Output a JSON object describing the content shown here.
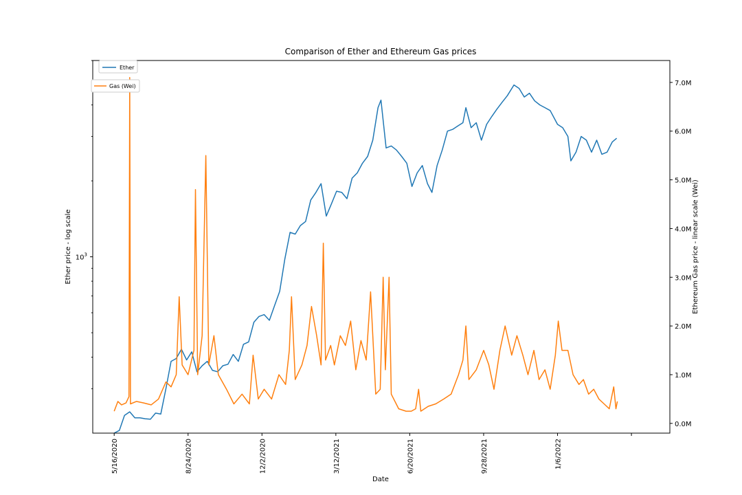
{
  "chart_data": {
    "type": "line",
    "title": "Comparison of Ether and Ethereum Gas prices",
    "xlabel": "Date",
    "ylabel_left": "Ether price - log scale",
    "ylabel_right": "Ethereum Gas price - linear scale (Wei)",
    "left_axis": {
      "scale": "log",
      "ylim": [
        200,
        6000
      ],
      "tick_labels": [
        "10^3"
      ]
    },
    "right_axis": {
      "scale": "linear",
      "ylim": [
        -200000,
        7450000
      ],
      "ticks": [
        0,
        1000000,
        2000000,
        3000000,
        4000000,
        5000000,
        6000000,
        7000000
      ],
      "tick_labels": [
        "0.0M",
        "1.0M",
        "2.0M",
        "3.0M",
        "4.0M",
        "5.0M",
        "6.0M",
        "7.0M"
      ]
    },
    "x_ticks": [
      "5/16/2020",
      "8/24/2020",
      "12/2/2020",
      "3/12/2021",
      "6/20/2021",
      "9/28/2021",
      "1/6/2022"
    ],
    "grid": false,
    "colors": {
      "ether": "#1f77b4",
      "gas": "#ff7f0e"
    },
    "legend": [
      {
        "name": "Ether",
        "color": "#1f77b4",
        "axis": "left",
        "placement": "top-left"
      },
      {
        "name": "Gas (Wei)",
        "color": "#ff7f0e",
        "axis": "right",
        "placement": "upper-left"
      }
    ],
    "series": [
      {
        "name": "Ether",
        "axis": "left",
        "points": [
          [
            "2020-05-16",
            200
          ],
          [
            "2020-05-23",
            205
          ],
          [
            "2020-05-30",
            235
          ],
          [
            "2020-06-06",
            243
          ],
          [
            "2020-06-13",
            230
          ],
          [
            "2020-06-20",
            230
          ],
          [
            "2020-06-27",
            228
          ],
          [
            "2020-07-04",
            227
          ],
          [
            "2020-07-11",
            240
          ],
          [
            "2020-07-18",
            238
          ],
          [
            "2020-07-25",
            300
          ],
          [
            "2020-08-01",
            385
          ],
          [
            "2020-08-08",
            395
          ],
          [
            "2020-08-15",
            430
          ],
          [
            "2020-08-22",
            390
          ],
          [
            "2020-08-29",
            420
          ],
          [
            "2020-09-05",
            350
          ],
          [
            "2020-09-12",
            370
          ],
          [
            "2020-09-19",
            385
          ],
          [
            "2020-09-26",
            355
          ],
          [
            "2020-10-03",
            350
          ],
          [
            "2020-10-10",
            370
          ],
          [
            "2020-10-17",
            375
          ],
          [
            "2020-10-24",
            410
          ],
          [
            "2020-10-31",
            385
          ],
          [
            "2020-11-07",
            450
          ],
          [
            "2020-11-14",
            460
          ],
          [
            "2020-11-21",
            550
          ],
          [
            "2020-11-28",
            580
          ],
          [
            "2020-12-05",
            590
          ],
          [
            "2020-12-12",
            560
          ],
          [
            "2020-12-19",
            640
          ],
          [
            "2020-12-26",
            730
          ],
          [
            "2021-01-02",
            980
          ],
          [
            "2021-01-09",
            1250
          ],
          [
            "2021-01-16",
            1230
          ],
          [
            "2021-01-23",
            1330
          ],
          [
            "2021-01-30",
            1380
          ],
          [
            "2021-02-06",
            1680
          ],
          [
            "2021-02-13",
            1800
          ],
          [
            "2021-02-20",
            1950
          ],
          [
            "2021-02-27",
            1450
          ],
          [
            "2021-03-06",
            1620
          ],
          [
            "2021-03-13",
            1820
          ],
          [
            "2021-03-20",
            1800
          ],
          [
            "2021-03-27",
            1700
          ],
          [
            "2021-04-03",
            2050
          ],
          [
            "2021-04-10",
            2150
          ],
          [
            "2021-04-17",
            2350
          ],
          [
            "2021-04-24",
            2500
          ],
          [
            "2021-05-01",
            2900
          ],
          [
            "2021-05-08",
            3900
          ],
          [
            "2021-05-12",
            4180
          ],
          [
            "2021-05-19",
            2700
          ],
          [
            "2021-05-26",
            2750
          ],
          [
            "2021-06-02",
            2650
          ],
          [
            "2021-06-09",
            2500
          ],
          [
            "2021-06-16",
            2350
          ],
          [
            "2021-06-23",
            1900
          ],
          [
            "2021-06-30",
            2150
          ],
          [
            "2021-07-07",
            2300
          ],
          [
            "2021-07-14",
            1950
          ],
          [
            "2021-07-20",
            1800
          ],
          [
            "2021-07-27",
            2300
          ],
          [
            "2021-08-03",
            2650
          ],
          [
            "2021-08-10",
            3150
          ],
          [
            "2021-08-17",
            3200
          ],
          [
            "2021-08-24",
            3300
          ],
          [
            "2021-08-31",
            3400
          ],
          [
            "2021-09-04",
            3900
          ],
          [
            "2021-09-11",
            3250
          ],
          [
            "2021-09-18",
            3400
          ],
          [
            "2021-09-25",
            2900
          ],
          [
            "2021-10-02",
            3350
          ],
          [
            "2021-10-09",
            3600
          ],
          [
            "2021-10-16",
            3850
          ],
          [
            "2021-10-23",
            4100
          ],
          [
            "2021-10-30",
            4350
          ],
          [
            "2021-11-08",
            4800
          ],
          [
            "2021-11-15",
            4650
          ],
          [
            "2021-11-22",
            4300
          ],
          [
            "2021-11-29",
            4450
          ],
          [
            "2021-12-06",
            4150
          ],
          [
            "2021-12-13",
            4000
          ],
          [
            "2021-12-20",
            3900
          ],
          [
            "2021-12-27",
            3800
          ],
          [
            "2022-01-06",
            3350
          ],
          [
            "2022-01-13",
            3250
          ],
          [
            "2022-01-20",
            3000
          ],
          [
            "2022-01-24",
            2400
          ],
          [
            "2022-01-31",
            2600
          ],
          [
            "2022-02-07",
            3000
          ],
          [
            "2022-02-14",
            2900
          ],
          [
            "2022-02-21",
            2600
          ],
          [
            "2022-02-28",
            2900
          ],
          [
            "2022-03-07",
            2550
          ],
          [
            "2022-03-14",
            2600
          ],
          [
            "2022-03-21",
            2850
          ],
          [
            "2022-03-27",
            2950
          ]
        ]
      },
      {
        "name": "Gas (Wei)",
        "axis": "right",
        "points": [
          [
            "2020-05-16",
            250000
          ],
          [
            "2020-05-21",
            450000
          ],
          [
            "2020-05-26",
            380000
          ],
          [
            "2020-06-01",
            420000
          ],
          [
            "2020-06-05",
            550000
          ],
          [
            "2020-06-06",
            7100000
          ],
          [
            "2020-06-07",
            400000
          ],
          [
            "2020-06-15",
            450000
          ],
          [
            "2020-06-25",
            420000
          ],
          [
            "2020-07-05",
            380000
          ],
          [
            "2020-07-15",
            500000
          ],
          [
            "2020-07-25",
            850000
          ],
          [
            "2020-08-01",
            750000
          ],
          [
            "2020-08-08",
            1000000
          ],
          [
            "2020-08-12",
            2600000
          ],
          [
            "2020-08-16",
            1200000
          ],
          [
            "2020-08-24",
            1000000
          ],
          [
            "2020-09-01",
            1500000
          ],
          [
            "2020-09-03",
            4800000
          ],
          [
            "2020-09-06",
            1000000
          ],
          [
            "2020-09-12",
            1800000
          ],
          [
            "2020-09-17",
            5500000
          ],
          [
            "2020-09-21",
            1200000
          ],
          [
            "2020-09-28",
            1800000
          ],
          [
            "2020-10-04",
            1000000
          ],
          [
            "2020-10-15",
            700000
          ],
          [
            "2020-10-25",
            400000
          ],
          [
            "2020-11-05",
            600000
          ],
          [
            "2020-11-15",
            400000
          ],
          [
            "2020-11-20",
            1400000
          ],
          [
            "2020-11-27",
            500000
          ],
          [
            "2020-12-05",
            700000
          ],
          [
            "2020-12-15",
            500000
          ],
          [
            "2020-12-25",
            1000000
          ],
          [
            "2021-01-03",
            800000
          ],
          [
            "2021-01-08",
            1500000
          ],
          [
            "2021-01-11",
            2600000
          ],
          [
            "2021-01-16",
            900000
          ],
          [
            "2021-01-25",
            1200000
          ],
          [
            "2021-02-01",
            1600000
          ],
          [
            "2021-02-07",
            2400000
          ],
          [
            "2021-02-14",
            1800000
          ],
          [
            "2021-02-20",
            1200000
          ],
          [
            "2021-02-23",
            3700000
          ],
          [
            "2021-02-26",
            1300000
          ],
          [
            "2021-03-05",
            1600000
          ],
          [
            "2021-03-10",
            1200000
          ],
          [
            "2021-03-18",
            1800000
          ],
          [
            "2021-03-25",
            1600000
          ],
          [
            "2021-04-01",
            2100000
          ],
          [
            "2021-04-08",
            1100000
          ],
          [
            "2021-04-15",
            1700000
          ],
          [
            "2021-04-22",
            1300000
          ],
          [
            "2021-04-28",
            2700000
          ],
          [
            "2021-05-05",
            600000
          ],
          [
            "2021-05-11",
            700000
          ],
          [
            "2021-05-15",
            3000000
          ],
          [
            "2021-05-18",
            1100000
          ],
          [
            "2021-05-23",
            3000000
          ],
          [
            "2021-05-26",
            600000
          ],
          [
            "2021-06-05",
            300000
          ],
          [
            "2021-06-15",
            250000
          ],
          [
            "2021-06-22",
            250000
          ],
          [
            "2021-06-28",
            300000
          ],
          [
            "2021-07-02",
            700000
          ],
          [
            "2021-07-05",
            250000
          ],
          [
            "2021-07-15",
            350000
          ],
          [
            "2021-07-25",
            400000
          ],
          [
            "2021-08-05",
            500000
          ],
          [
            "2021-08-15",
            600000
          ],
          [
            "2021-08-25",
            1000000
          ],
          [
            "2021-08-31",
            1300000
          ],
          [
            "2021-09-04",
            2000000
          ],
          [
            "2021-09-08",
            900000
          ],
          [
            "2021-09-18",
            1100000
          ],
          [
            "2021-09-28",
            1500000
          ],
          [
            "2021-10-05",
            1200000
          ],
          [
            "2021-10-12",
            700000
          ],
          [
            "2021-10-20",
            1500000
          ],
          [
            "2021-10-27",
            2000000
          ],
          [
            "2021-11-05",
            1400000
          ],
          [
            "2021-11-12",
            1800000
          ],
          [
            "2021-11-20",
            1400000
          ],
          [
            "2021-11-27",
            1000000
          ],
          [
            "2021-12-05",
            1500000
          ],
          [
            "2021-12-12",
            900000
          ],
          [
            "2021-12-20",
            1100000
          ],
          [
            "2021-12-27",
            700000
          ],
          [
            "2022-01-03",
            1400000
          ],
          [
            "2022-01-07",
            2100000
          ],
          [
            "2022-01-12",
            1500000
          ],
          [
            "2022-01-20",
            1500000
          ],
          [
            "2022-01-27",
            1000000
          ],
          [
            "2022-02-04",
            800000
          ],
          [
            "2022-02-10",
            900000
          ],
          [
            "2022-02-17",
            600000
          ],
          [
            "2022-02-24",
            700000
          ],
          [
            "2022-03-03",
            500000
          ],
          [
            "2022-03-10",
            400000
          ],
          [
            "2022-03-17",
            300000
          ],
          [
            "2022-03-23",
            750000
          ],
          [
            "2022-03-26",
            300000
          ],
          [
            "2022-03-28",
            450000
          ]
        ]
      }
    ]
  }
}
